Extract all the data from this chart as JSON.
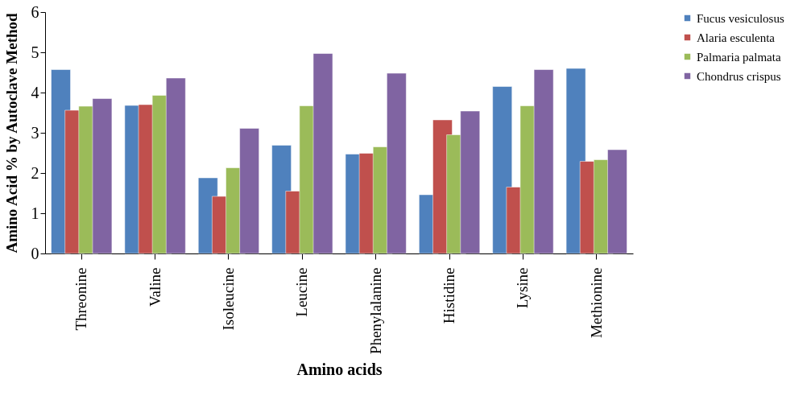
{
  "chart_data": {
    "type": "bar",
    "xlabel": "Amino acids",
    "ylabel": "Amino Acid % by Autoclave Method",
    "categories": [
      "Threonine",
      "Valine",
      "Isoleucine",
      "Leucine",
      "Phenylalanine",
      "Histidine",
      "Lysine",
      "Methionine"
    ],
    "series": [
      {
        "name": "Fucus vesiculosus",
        "color": "#4f81bd",
        "values": [
          4.57,
          3.68,
          1.88,
          2.69,
          2.47,
          1.46,
          4.15,
          4.6
        ]
      },
      {
        "name": "Alaria esculenta",
        "color": "#c0504d",
        "values": [
          3.56,
          3.7,
          1.42,
          1.55,
          2.49,
          3.32,
          1.65,
          2.29
        ]
      },
      {
        "name": "Palmaria palmata",
        "color": "#9bbb59",
        "values": [
          3.66,
          3.93,
          2.13,
          3.67,
          2.65,
          2.95,
          3.67,
          2.33
        ]
      },
      {
        "name": "Chondrus crispus",
        "color": "#8064a2",
        "values": [
          3.85,
          4.36,
          3.11,
          4.97,
          4.48,
          3.54,
          4.57,
          2.58
        ]
      }
    ],
    "ylim": [
      0,
      6
    ],
    "yticks": [
      0,
      1,
      2,
      3,
      4,
      5,
      6
    ],
    "grid": false,
    "legend": "top right"
  }
}
